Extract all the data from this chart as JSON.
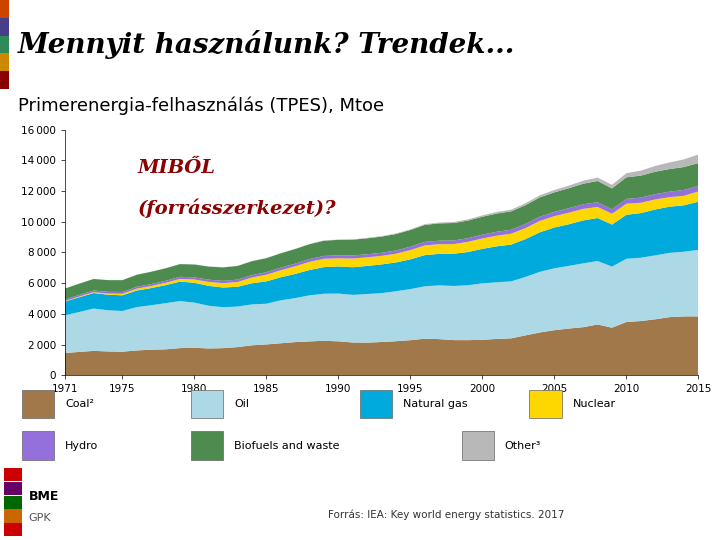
{
  "title_main": "Mennyit használunk? Trendek...",
  "subtitle": "Primerenergia-felhasználás (TPES), Mtoe",
  "annotation_line1": "MIBŐL",
  "annotation_line2": "(forrásszerkezet)?",
  "footer": "Forrás: IEA: Key world energy statistics. 2017",
  "years": [
    1971,
    1972,
    1973,
    1974,
    1975,
    1976,
    1977,
    1978,
    1979,
    1980,
    1981,
    1982,
    1983,
    1984,
    1985,
    1986,
    1987,
    1988,
    1989,
    1990,
    1991,
    1992,
    1993,
    1994,
    1995,
    1996,
    1997,
    1998,
    1999,
    2000,
    2001,
    2002,
    2003,
    2004,
    2005,
    2006,
    2007,
    2008,
    2009,
    2010,
    2011,
    2012,
    2013,
    2014,
    2015
  ],
  "coal": [
    1449,
    1524,
    1591,
    1555,
    1537,
    1621,
    1668,
    1691,
    1771,
    1792,
    1749,
    1769,
    1836,
    1955,
    2010,
    2088,
    2161,
    2209,
    2246,
    2213,
    2136,
    2128,
    2169,
    2220,
    2287,
    2384,
    2357,
    2292,
    2289,
    2310,
    2369,
    2406,
    2603,
    2790,
    2939,
    3044,
    3135,
    3310,
    3100,
    3474,
    3534,
    3648,
    3788,
    3836,
    3839
  ],
  "oil": [
    2450,
    2599,
    2756,
    2679,
    2649,
    2821,
    2893,
    3007,
    3061,
    2941,
    2778,
    2665,
    2641,
    2663,
    2651,
    2795,
    2867,
    3000,
    3067,
    3109,
    3101,
    3167,
    3183,
    3254,
    3327,
    3413,
    3499,
    3527,
    3573,
    3680,
    3686,
    3713,
    3805,
    3951,
    4029,
    4081,
    4155,
    4133,
    3979,
    4113,
    4121,
    4162,
    4185,
    4211,
    4331
  ],
  "natural_gas": [
    895,
    960,
    1010,
    1015,
    1022,
    1081,
    1119,
    1173,
    1269,
    1292,
    1295,
    1283,
    1289,
    1376,
    1457,
    1502,
    1572,
    1650,
    1732,
    1769,
    1799,
    1828,
    1869,
    1875,
    1938,
    2030,
    2052,
    2098,
    2166,
    2245,
    2345,
    2395,
    2465,
    2575,
    2657,
    2711,
    2797,
    2799,
    2737,
    2867,
    2908,
    2988,
    3007,
    3024,
    3135
  ],
  "nuclear": [
    29,
    44,
    55,
    74,
    103,
    119,
    135,
    152,
    181,
    213,
    257,
    284,
    310,
    374,
    431,
    454,
    497,
    527,
    545,
    526,
    571,
    557,
    555,
    568,
    602,
    631,
    630,
    623,
    664,
    675,
    691,
    706,
    715,
    740,
    739,
    750,
    753,
    719,
    703,
    720,
    675,
    653,
    622,
    619,
    670
  ],
  "hydro": [
    104,
    107,
    108,
    113,
    116,
    121,
    124,
    131,
    133,
    141,
    145,
    152,
    157,
    160,
    165,
    171,
    176,
    183,
    185,
    195,
    197,
    200,
    203,
    210,
    220,
    226,
    229,
    240,
    237,
    248,
    256,
    258,
    271,
    277,
    276,
    296,
    298,
    308,
    294,
    316,
    330,
    346,
    355,
    379,
    358
  ],
  "biofuels": [
    720,
    733,
    752,
    762,
    769,
    787,
    803,
    814,
    827,
    838,
    856,
    874,
    889,
    905,
    915,
    935,
    953,
    971,
    990,
    1010,
    1029,
    1041,
    1053,
    1072,
    1090,
    1110,
    1127,
    1136,
    1149,
    1169,
    1188,
    1199,
    1224,
    1257,
    1274,
    1300,
    1339,
    1385,
    1360,
    1403,
    1436,
    1461,
    1475,
    1495,
    1490
  ],
  "other": [
    2,
    3,
    3,
    3,
    4,
    5,
    6,
    6,
    7,
    7,
    7,
    7,
    8,
    8,
    9,
    12,
    13,
    14,
    16,
    19,
    22,
    28,
    34,
    39,
    44,
    49,
    57,
    64,
    73,
    88,
    99,
    111,
    124,
    137,
    153,
    170,
    195,
    220,
    230,
    268,
    322,
    377,
    430,
    499,
    557
  ],
  "colors": {
    "coal": "#A0784A",
    "oil": "#ADD8E6",
    "natural_gas": "#00AADD",
    "nuclear": "#FFD700",
    "hydro": "#9370DB",
    "biofuels": "#4E8B4E",
    "other": "#B8B8B8"
  },
  "ylim": [
    0,
    16000
  ],
  "yticks": [
    0,
    2000,
    4000,
    6000,
    8000,
    10000,
    12000,
    14000,
    16000
  ],
  "xticks": [
    1971,
    1975,
    1980,
    1985,
    1990,
    1995,
    2000,
    2005,
    2010,
    2015
  ],
  "bg_color": "#FFFFFF",
  "title_bg_color": "#C8C8C8",
  "annotation_color": "#8B0000",
  "left_bar_colors": [
    "#8B0000",
    "#CC8800",
    "#2E8B57",
    "#483D8B",
    "#CC4400"
  ],
  "legend_row1": [
    {
      "label": "Coal²",
      "color": "#A0784A"
    },
    {
      "label": "Oil",
      "color": "#ADD8E6"
    },
    {
      "label": "Natural gas",
      "color": "#00AADD"
    },
    {
      "label": "Nuclear",
      "color": "#FFD700"
    }
  ],
  "legend_row2": [
    {
      "label": "Hydro",
      "color": "#9370DB"
    },
    {
      "label": "Biofuels and waste",
      "color": "#4E8B4E"
    },
    {
      "label": "Other³",
      "color": "#B8B8B8"
    }
  ]
}
